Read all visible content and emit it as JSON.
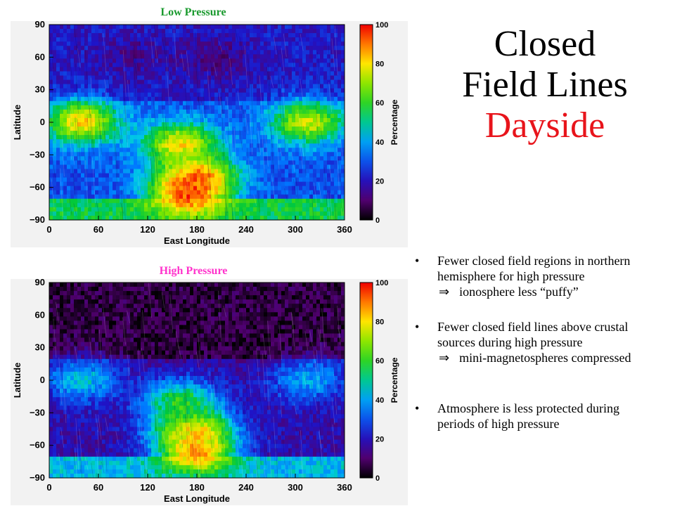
{
  "slide": {
    "title_line1": "Closed",
    "title_line2": "Field Lines",
    "title_line3": "Dayside",
    "title_color": "#000000",
    "accent_color": "#e8141b"
  },
  "bullets": [
    {
      "line1": "Fewer closed field regions in northern",
      "line2": "hemisphere for high pressure",
      "implication": "ionosphere less “puffy”"
    },
    {
      "line1": "Fewer closed field lines above crustal",
      "line2": "sources during high pressure",
      "implication": "mini-magnetospheres compressed"
    },
    {
      "line1": "Atmosphere is less protected during",
      "line2": "periods of high pressure",
      "implication": ""
    }
  ],
  "implies_symbol": "⇒",
  "bullet_symbol": "•",
  "chart_data": [
    {
      "type": "heatmap",
      "title": "Low Pressure",
      "title_color": "#1a9a2e",
      "xlabel": "East Longitude",
      "ylabel": "Latitude",
      "xlim": [
        0,
        360
      ],
      "ylim": [
        -90,
        90
      ],
      "x_ticks": [
        "0",
        "60",
        "120",
        "180",
        "240",
        "300",
        "360"
      ],
      "y_ticks": [
        "90",
        "60",
        "30",
        "0",
        "−30",
        "−60",
        "−90"
      ],
      "colorbar": {
        "label": "Percentage",
        "range": [
          0,
          100
        ],
        "ticks": [
          "100",
          "80",
          "60",
          "40",
          "20",
          "0"
        ]
      },
      "regions": [
        {
          "lon": 180,
          "lat": -50,
          "value": 88
        },
        {
          "lon": 170,
          "lat": -65,
          "value": 95
        },
        {
          "lon": 160,
          "lat": -20,
          "value": 80
        },
        {
          "lon": 40,
          "lat": 0,
          "value": 82
        },
        {
          "lon": 315,
          "lat": 0,
          "value": 75
        },
        {
          "lon": 100,
          "lat": 60,
          "value": 15
        },
        {
          "lon": 200,
          "lat": 60,
          "value": 12
        }
      ]
    },
    {
      "type": "heatmap",
      "title": "High Pressure",
      "title_color": "#ff33cc",
      "xlabel": "East Longitude",
      "ylabel": "Latitude",
      "xlim": [
        0,
        360
      ],
      "ylim": [
        -90,
        90
      ],
      "x_ticks": [
        "0",
        "60",
        "120",
        "180",
        "240",
        "300",
        "360"
      ],
      "y_ticks": [
        "90",
        "60",
        "30",
        "0",
        "−30",
        "−60",
        "−90"
      ],
      "colorbar": {
        "label": "Percentage",
        "range": [
          0,
          100
        ],
        "ticks": [
          "100",
          "80",
          "60",
          "40",
          "20",
          "0"
        ]
      },
      "regions": [
        {
          "lon": 180,
          "lat": -65,
          "value": 90
        },
        {
          "lon": 175,
          "lat": -45,
          "value": 85
        },
        {
          "lon": 160,
          "lat": -20,
          "value": 60
        },
        {
          "lon": 40,
          "lat": 0,
          "value": 45
        },
        {
          "lon": 315,
          "lat": 0,
          "value": 40
        },
        {
          "lon": 150,
          "lat": 40,
          "value": 5
        },
        {
          "lon": 250,
          "lat": 40,
          "value": 5
        }
      ]
    }
  ]
}
